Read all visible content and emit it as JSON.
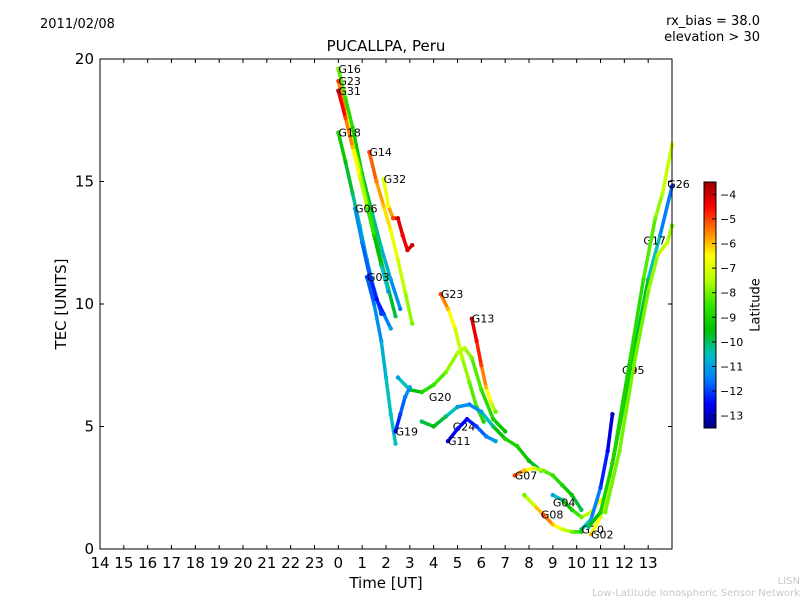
{
  "header": {
    "date": "2011/02/08",
    "rx_bias": "rx_bias = 38.0",
    "elevation": "elevation > 30"
  },
  "footer": {
    "credit_short": "LISN",
    "credit_long": "Low-Latitude Ionospheric Sensor Network"
  },
  "chart_data": {
    "type": "scatter",
    "title": "PUCALLPA, Peru",
    "xlabel": "Time [UT]",
    "ylabel": "TEC [UNITS]",
    "xlim": [
      14,
      38
    ],
    "ylim": [
      0,
      20
    ],
    "x_ticks": [
      14,
      15,
      16,
      17,
      18,
      19,
      20,
      21,
      22,
      23,
      24,
      25,
      26,
      27,
      28,
      29,
      30,
      31,
      32,
      33,
      34,
      35,
      36,
      37
    ],
    "x_tick_labels": [
      "14",
      "15",
      "16",
      "17",
      "18",
      "19",
      "20",
      "21",
      "22",
      "23",
      "0",
      "1",
      "2",
      "3",
      "4",
      "5",
      "6",
      "7",
      "8",
      "9",
      "10",
      "11",
      "12",
      "13"
    ],
    "y_ticks": [
      0,
      5,
      10,
      15,
      20
    ],
    "y_tick_labels": [
      "0",
      "5",
      "10",
      "15",
      "20"
    ],
    "grid": false,
    "colorbar": {
      "label": "Latitude",
      "min": -13.5,
      "max": -3.5,
      "ticks": [
        -4,
        -5,
        -6,
        -7,
        -8,
        -9,
        -10,
        -11,
        -12,
        -13
      ],
      "tick_labels": [
        "−4",
        "−5",
        "−6",
        "−7",
        "−8",
        "−9",
        "−10",
        "−11",
        "−12",
        "−13"
      ],
      "colormap": [
        "#00007f",
        "#0000ff",
        "#007fff",
        "#00bfbf",
        "#00c000",
        "#33e600",
        "#b4ff00",
        "#ffff00",
        "#ff7f00",
        "#ff0000",
        "#9a0000"
      ]
    },
    "series": [
      {
        "name": "G16",
        "label_at": [
          24.0,
          19.6
        ],
        "points": [
          [
            24.0,
            19.6,
            -8
          ],
          [
            24.3,
            18.4,
            -8.5
          ],
          [
            24.6,
            17.2,
            -9
          ],
          [
            25.0,
            15.3,
            -9.5
          ],
          [
            25.4,
            13.8,
            -10
          ],
          [
            25.8,
            12.3,
            -10.5
          ],
          [
            26.2,
            11.0,
            -11
          ],
          [
            26.6,
            9.8,
            -11.5
          ]
        ]
      },
      {
        "name": "G23",
        "label_at": [
          24.0,
          19.1
        ],
        "points": [
          [
            24.0,
            19.1,
            -5
          ],
          [
            24.3,
            17.8,
            -6
          ],
          [
            24.6,
            16.5,
            -7
          ],
          [
            24.9,
            15.5,
            -8
          ],
          [
            25.2,
            14.2,
            -8.5
          ],
          [
            25.6,
            12.5,
            -9
          ],
          [
            26.0,
            11.0,
            -9.5
          ],
          [
            26.4,
            9.5,
            -10
          ]
        ]
      },
      {
        "name": "G31",
        "label_at": [
          24.0,
          18.7
        ],
        "points": [
          [
            24.0,
            18.7,
            -4
          ],
          [
            24.3,
            17.6,
            -5
          ],
          [
            24.6,
            16.4,
            -6
          ],
          [
            24.9,
            15.2,
            -7
          ],
          [
            25.2,
            14.0,
            -8
          ],
          [
            25.5,
            12.8,
            -9
          ],
          [
            25.8,
            11.6,
            -10
          ],
          [
            26.1,
            10.5,
            -11
          ]
        ]
      },
      {
        "name": "G18",
        "label_at": [
          24.0,
          17.0
        ],
        "points": [
          [
            24.0,
            17.0,
            -9
          ],
          [
            24.3,
            15.8,
            -9.5
          ],
          [
            24.6,
            14.5,
            -10
          ],
          [
            24.9,
            13.2,
            -10.5
          ],
          [
            25.2,
            11.8,
            -11
          ],
          [
            25.5,
            10.6,
            -11.5
          ],
          [
            25.8,
            9.6,
            -12
          ]
        ]
      },
      {
        "name": "G14",
        "label_at": [
          25.3,
          16.2
        ],
        "points": [
          [
            25.3,
            16.2,
            -5
          ],
          [
            25.6,
            15.0,
            -5.5
          ],
          [
            25.9,
            14.0,
            -6
          ],
          [
            26.2,
            13.0,
            -6.5
          ],
          [
            26.5,
            11.8,
            -7
          ],
          [
            26.8,
            10.5,
            -7.5
          ],
          [
            27.1,
            9.2,
            -8
          ]
        ]
      },
      {
        "name": "G32",
        "label_at": [
          25.9,
          15.1
        ],
        "points": [
          [
            25.9,
            15.1,
            -7
          ],
          [
            26.1,
            14.0,
            -6.5
          ],
          [
            26.3,
            13.5,
            -5
          ],
          [
            26.5,
            13.5,
            -4
          ],
          [
            26.7,
            12.8,
            -4.5
          ],
          [
            26.9,
            12.2,
            -4.2
          ],
          [
            27.1,
            12.4,
            -4
          ]
        ]
      },
      {
        "name": "G06",
        "label_at": [
          24.7,
          13.9
        ],
        "points": [
          [
            24.7,
            13.9,
            -11
          ],
          [
            25.0,
            12.5,
            -11.5
          ],
          [
            25.3,
            11.2,
            -12
          ],
          [
            25.6,
            10.2,
            -12.5
          ],
          [
            25.9,
            9.6,
            -12
          ],
          [
            26.2,
            9.0,
            -11
          ]
        ]
      },
      {
        "name": "G03",
        "label_at": [
          25.2,
          11.1
        ],
        "points": [
          [
            25.2,
            11.1,
            -12
          ],
          [
            25.5,
            10.0,
            -11.5
          ],
          [
            25.8,
            8.5,
            -11
          ],
          [
            26.0,
            7.0,
            -10.5
          ],
          [
            26.2,
            5.5,
            -10.5
          ],
          [
            26.4,
            4.3,
            -10.5
          ]
        ]
      },
      {
        "name": "G23",
        "label_at": [
          28.3,
          10.4
        ],
        "points": [
          [
            28.3,
            10.4,
            -5
          ],
          [
            28.6,
            9.8,
            -6
          ],
          [
            28.9,
            9.0,
            -7
          ],
          [
            29.2,
            7.8,
            -7.5
          ],
          [
            29.5,
            6.8,
            -8
          ],
          [
            29.8,
            5.8,
            -8.5
          ],
          [
            30.1,
            5.2,
            -9
          ]
        ]
      },
      {
        "name": "G13",
        "label_at": [
          29.6,
          9.4
        ],
        "points": [
          [
            29.6,
            9.4,
            -4
          ],
          [
            29.8,
            8.5,
            -4.5
          ],
          [
            30.0,
            7.5,
            -5
          ],
          [
            30.2,
            6.6,
            -6
          ],
          [
            30.4,
            6.0,
            -7
          ],
          [
            30.6,
            5.6,
            -8
          ]
        ]
      },
      {
        "name": "G20",
        "label_at": [
          27.8,
          6.2
        ],
        "points": [
          [
            26.5,
            7.0,
            -11
          ],
          [
            27.0,
            6.5,
            -10
          ],
          [
            27.5,
            6.4,
            -9
          ],
          [
            28.0,
            6.7,
            -8.5
          ],
          [
            28.5,
            7.2,
            -8
          ],
          [
            29.0,
            8.0,
            -7.5
          ],
          [
            29.3,
            8.2,
            -7.5
          ],
          [
            29.6,
            7.8,
            -8
          ],
          [
            30.0,
            6.5,
            -8.5
          ],
          [
            30.5,
            5.3,
            -9
          ],
          [
            31.0,
            4.8,
            -9.5
          ]
        ]
      },
      {
        "name": "G24",
        "label_at": [
          28.8,
          5.0
        ],
        "points": [
          [
            27.5,
            5.2,
            -10
          ],
          [
            28.0,
            5.0,
            -9.5
          ],
          [
            28.5,
            5.4,
            -10
          ],
          [
            29.0,
            5.8,
            -11
          ],
          [
            29.5,
            5.9,
            -11.5
          ],
          [
            30.0,
            5.6,
            -11
          ],
          [
            30.5,
            5.0,
            -10
          ],
          [
            31.0,
            4.5,
            -9
          ],
          [
            31.5,
            4.2,
            -9
          ],
          [
            32.0,
            3.6,
            -9.5
          ],
          [
            32.5,
            3.2,
            -10
          ]
        ]
      },
      {
        "name": "G11",
        "label_at": [
          28.6,
          4.4
        ],
        "points": [
          [
            28.6,
            4.4,
            -12.5
          ],
          [
            29.0,
            4.9,
            -12.5
          ],
          [
            29.4,
            5.3,
            -12.5
          ],
          [
            29.8,
            5.0,
            -12
          ],
          [
            30.2,
            4.6,
            -11.5
          ],
          [
            30.6,
            4.4,
            -11
          ]
        ]
      },
      {
        "name": "G19",
        "label_at": [
          26.4,
          4.8
        ],
        "points": [
          [
            26.4,
            4.8,
            -12.5
          ],
          [
            26.6,
            5.5,
            -12
          ],
          [
            26.8,
            6.2,
            -11.5
          ],
          [
            27.0,
            6.6,
            -11
          ]
        ]
      },
      {
        "name": "G07",
        "label_at": [
          31.4,
          3.0
        ],
        "points": [
          [
            31.4,
            3.0,
            -5
          ],
          [
            31.8,
            3.2,
            -6
          ],
          [
            32.2,
            3.3,
            -7
          ],
          [
            32.6,
            3.2,
            -8
          ],
          [
            33.0,
            3.0,
            -8.5
          ],
          [
            33.4,
            2.6,
            -9
          ],
          [
            33.8,
            2.2,
            -9.5
          ],
          [
            34.2,
            1.6,
            -10
          ]
        ]
      },
      {
        "name": "G04",
        "label_at": [
          33.0,
          1.9
        ],
        "points": [
          [
            33.0,
            2.2,
            -11
          ],
          [
            33.4,
            2.0,
            -10
          ],
          [
            33.8,
            1.6,
            -9
          ],
          [
            34.2,
            1.3,
            -8
          ],
          [
            34.6,
            1.5,
            -7
          ],
          [
            35.0,
            2.0,
            -6.5
          ]
        ]
      },
      {
        "name": "G08",
        "label_at": [
          32.5,
          1.4
        ],
        "points": [
          [
            31.8,
            2.2,
            -8
          ],
          [
            32.2,
            1.8,
            -7
          ],
          [
            32.6,
            1.4,
            -5
          ],
          [
            33.0,
            1.0,
            -6
          ],
          [
            33.4,
            0.8,
            -7
          ],
          [
            33.8,
            0.7,
            -8
          ],
          [
            34.2,
            0.7,
            -9
          ]
        ]
      },
      {
        "name": "G10",
        "label_at": [
          34.2,
          0.8
        ],
        "points": [
          [
            34.2,
            0.8,
            -10
          ],
          [
            34.6,
            1.2,
            -11
          ],
          [
            35.0,
            2.5,
            -12
          ],
          [
            35.3,
            4.0,
            -12.5
          ],
          [
            35.5,
            5.5,
            -13
          ]
        ]
      },
      {
        "name": "G02",
        "label_at": [
          34.6,
          0.6
        ],
        "points": [
          [
            34.6,
            0.6,
            -6
          ],
          [
            35.0,
            1.3,
            -7
          ],
          [
            35.4,
            3.0,
            -8
          ],
          [
            35.8,
            5.0,
            -7
          ],
          [
            36.2,
            7.0,
            -5
          ],
          [
            36.4,
            7.3,
            -4
          ]
        ]
      },
      {
        "name": "G05",
        "label_at": [
          35.9,
          7.3
        ],
        "points": [
          [
            34.5,
            0.9,
            -10
          ],
          [
            35.0,
            1.5,
            -9
          ],
          [
            35.5,
            3.5,
            -9
          ],
          [
            36.0,
            6.0,
            -9
          ],
          [
            36.5,
            8.5,
            -9.5
          ],
          [
            37.0,
            11.0,
            -10
          ],
          [
            37.5,
            12.8,
            -11
          ],
          [
            38.0,
            14.8,
            -12
          ]
        ]
      },
      {
        "name": "G17",
        "label_at": [
          36.8,
          12.6
        ],
        "points": [
          [
            35.2,
            1.5,
            -8
          ],
          [
            35.8,
            4.0,
            -8
          ],
          [
            36.4,
            7.5,
            -8
          ],
          [
            37.0,
            10.5,
            -8
          ],
          [
            37.4,
            12.0,
            -7.5
          ],
          [
            37.8,
            12.5,
            -7.2
          ],
          [
            38.0,
            13.2,
            -8
          ]
        ]
      },
      {
        "name": "G26",
        "label_at": [
          37.8,
          14.9
        ],
        "points": [
          [
            35.5,
            3.5,
            -9
          ],
          [
            36.2,
            7.5,
            -9
          ],
          [
            36.8,
            11.0,
            -8.5
          ],
          [
            37.3,
            13.5,
            -8
          ],
          [
            37.6,
            14.5,
            -7.5
          ],
          [
            38.0,
            16.5,
            -7
          ]
        ]
      }
    ]
  }
}
